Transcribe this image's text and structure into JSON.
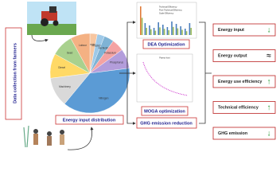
{
  "left_label": "Data collection from farmers",
  "pie": {
    "caption": "Energy input distribution",
    "labels": [
      "Fungicide",
      "Pesticide",
      "Herbicide",
      "Potassium",
      "Phosphorus",
      "Nitrogen",
      "Machinery",
      "Diesel",
      "Seed",
      "Labour"
    ]
  },
  "dea": {
    "caption": "DEA Optimization",
    "legend": [
      "Technical Efficiency",
      "Pure Technical Efficiency",
      "Scale Efficiency"
    ]
  },
  "moga": {
    "caption": "MOGA optimization",
    "title": "Pareto front"
  },
  "ghg_box": "GHG emission reduction",
  "outcomes": [
    {
      "label": "Energy input",
      "arrow": "↓"
    },
    {
      "label": "Energy output",
      "arrow": "≈"
    },
    {
      "label": "Energy use efficiency",
      "arrow": "↑"
    },
    {
      "label": "Technical efficiency",
      "arrow": "↑"
    },
    {
      "label": "GHG emission",
      "arrow": "↓"
    }
  ]
}
